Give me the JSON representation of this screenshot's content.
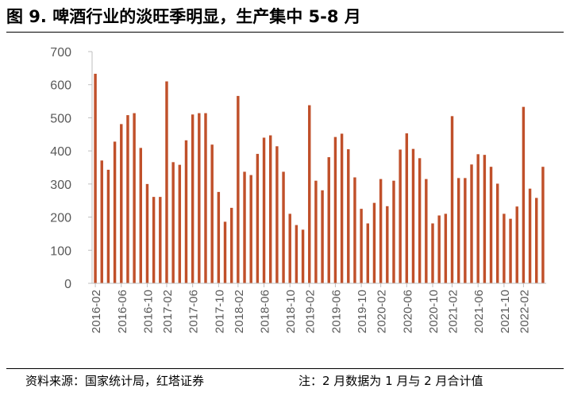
{
  "title": "图 9. 啤酒行业的淡旺季明显，生产集中 5-8 月",
  "footer": {
    "source": "资料来源：国家统计局，红塔证券",
    "note": "注：2 月数据为 1 月与 2 月合计值"
  },
  "colors": {
    "bar": "#C0502A",
    "axis": "#BFBFBF",
    "text": "#595959"
  },
  "chart_data": {
    "type": "bar",
    "title": "",
    "xlabel": "",
    "ylabel": "",
    "ylim": [
      0,
      700
    ],
    "yticks": [
      0,
      100,
      200,
      300,
      400,
      500,
      600,
      700
    ],
    "grid": false,
    "legend": "none",
    "x_tick_labels": [
      "2016-02",
      "2016-06",
      "2016-10",
      "2017-02",
      "2017-06",
      "2017-10",
      "2018-02",
      "2018-06",
      "2018-10",
      "2019-02",
      "2019-06",
      "2019-10",
      "2020-02",
      "2020-06",
      "2020-10",
      "2021-02",
      "2021-06",
      "2021-10",
      "2022-02"
    ],
    "categories": [
      "2016-02",
      "2016-03",
      "2016-04",
      "2016-05",
      "2016-06",
      "2016-07",
      "2016-08",
      "2016-09",
      "2016-10",
      "2016-11",
      "2016-12",
      "2017-02",
      "2017-03",
      "2017-04",
      "2017-05",
      "2017-06",
      "2017-07",
      "2017-08",
      "2017-09",
      "2017-10",
      "2017-11",
      "2017-12",
      "2018-02",
      "2018-03",
      "2018-04",
      "2018-05",
      "2018-06",
      "2018-07",
      "2018-08",
      "2018-09",
      "2018-10",
      "2018-11",
      "2018-12",
      "2019-02",
      "2019-03",
      "2019-04",
      "2019-05",
      "2019-06",
      "2019-07",
      "2019-08",
      "2019-09",
      "2019-10",
      "2019-11",
      "2019-12",
      "2020-02",
      "2020-03",
      "2020-04",
      "2020-05",
      "2020-06",
      "2020-07",
      "2020-08",
      "2020-09",
      "2020-10",
      "2020-11",
      "2020-12",
      "2021-02",
      "2021-03",
      "2021-04",
      "2021-05",
      "2021-06",
      "2021-07",
      "2021-08",
      "2021-09",
      "2021-10",
      "2021-11",
      "2021-12",
      "2022-02",
      "2022-03",
      "2022-04",
      "2022-05"
    ],
    "values": [
      633,
      371,
      343,
      428,
      481,
      508,
      514,
      409,
      300,
      261,
      261,
      610,
      366,
      358,
      432,
      510,
      514,
      514,
      419,
      276,
      186,
      228,
      566,
      337,
      327,
      391,
      440,
      447,
      414,
      337,
      210,
      176,
      162,
      538,
      310,
      281,
      381,
      442,
      452,
      405,
      320,
      225,
      181,
      243,
      315,
      233,
      310,
      404,
      453,
      406,
      378,
      315,
      181,
      205,
      210,
      505,
      318,
      318,
      359,
      390,
      388,
      352,
      301,
      210,
      195,
      232,
      533,
      286,
      258,
      352
    ]
  }
}
